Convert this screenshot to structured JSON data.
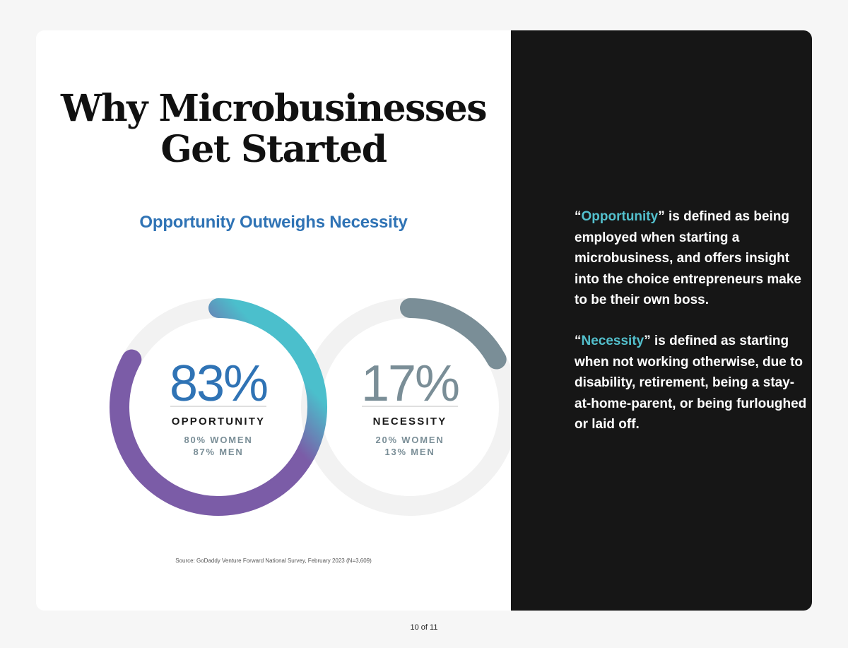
{
  "page": {
    "page_number": "10 of 11"
  },
  "slide": {
    "title_line1": "Why Microbusinesses",
    "title_line2": "Get Started",
    "subtitle": "Opportunity Outweighs Necessity",
    "source": "Source: GoDaddy Venture Forward National Survey, February 2023 (N=3,609)"
  },
  "definitions": {
    "opportunity_term": "Opportunity",
    "opportunity_text": " is defined as being employed when starting a microbusiness, and offers insight into the choice entrepreneurs make to be their own boss.",
    "necessity_term": "Necessity",
    "necessity_text": " is defined as starting when not working otherwise, due to disability, retirement, being a stay-at-home-parent, or being furloughed or laid off."
  },
  "colors": {
    "opportunity_gradient_start": "#7b5ca7",
    "opportunity_gradient_end": "#4bbfcc",
    "necessity_arc": "#7a8e97",
    "track": "#f2f2f2",
    "opportunity_value": "#2f73b5",
    "necessity_value": "#7a8e97",
    "term_highlight": "#53c0cd",
    "right_panel": "#161616"
  },
  "chart_data": {
    "type": "donut",
    "title": "Opportunity Outweighs Necessity",
    "series": [
      {
        "name": "OPPORTUNITY",
        "value": 83,
        "value_label": "83%",
        "breakdown": [
          "80% WOMEN",
          "87% MEN"
        ],
        "women": 80,
        "men": 87
      },
      {
        "name": "NECESSITY",
        "value": 17,
        "value_label": "17%",
        "breakdown": [
          "20% WOMEN",
          "13% MEN"
        ],
        "women": 20,
        "men": 13
      }
    ]
  }
}
